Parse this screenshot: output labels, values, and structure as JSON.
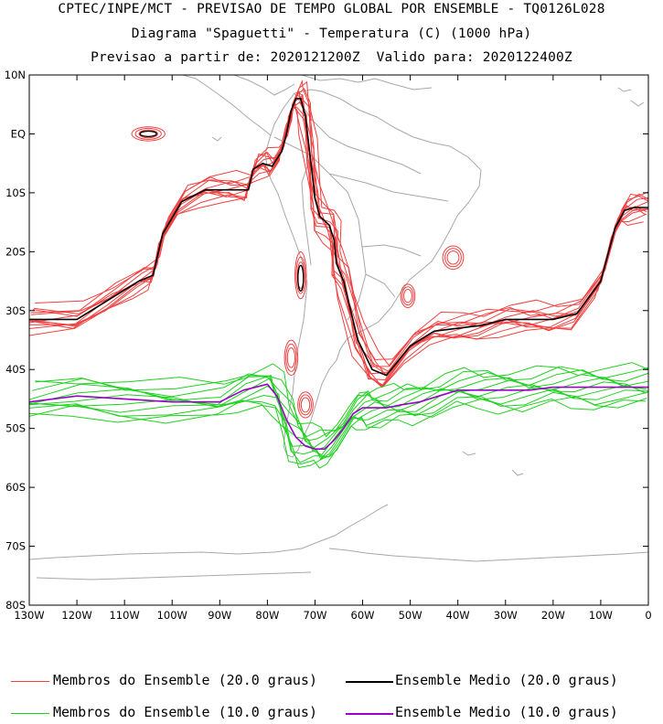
{
  "title": {
    "line1": "CPTEC/INPE/MCT - PREVISAO DE TEMPO GLOBAL POR ENSEMBLE - TQ0126L028",
    "line2": "Diagrama \"Spaguetti\" - Temperatura (C) (1000 hPa)",
    "line3": "Previsao a partir de: 2020121200Z  Valido para: 2020122400Z"
  },
  "axes": {
    "y_ticks": [
      "10N",
      "EQ",
      "10S",
      "20S",
      "30S",
      "40S",
      "50S",
      "60S",
      "70S",
      "80S"
    ],
    "x_ticks": [
      "130W",
      "120W",
      "110W",
      "100W",
      "90W",
      "80W",
      "70W",
      "60W",
      "50W",
      "40W",
      "30W",
      "20W",
      "10W",
      "0"
    ]
  },
  "legend": {
    "members_20": "Membros do Ensemble (20.0 graus)",
    "mean_20": "Ensemble Medio (20.0 graus)",
    "members_10": "Membros do Ensemble (10.0 graus)",
    "mean_10": "Ensemble Medio (10.0 graus)"
  },
  "colors": {
    "members_20": "#f04040",
    "mean_20": "#000000",
    "members_10": "#20d020",
    "mean_10": "#9a00c8",
    "coast": "#a8a8a8"
  },
  "chart_data": {
    "type": "line",
    "title": "Diagrama \"Spaguetti\" - Temperatura (C) (1000 hPa)",
    "xlim": [
      -130,
      0
    ],
    "ylim": [
      -80,
      10
    ],
    "series": [
      {
        "name": "Ensemble Medio (20.0 graus)",
        "lon": [
          -130,
          -120,
          -113,
          -107,
          -104,
          -102,
          -98,
          -93,
          -88,
          -84,
          -83,
          -81,
          -79,
          -77,
          -76,
          -75,
          -74,
          -73,
          -72,
          -71,
          -70,
          -69,
          -67,
          -66,
          -65.5,
          -64,
          -61,
          -58,
          -55,
          -50,
          -45,
          -40,
          -35,
          -30,
          -25,
          -20,
          -15,
          -10,
          -7,
          -5,
          -3,
          0
        ],
        "lat": [
          -31.5,
          -31.5,
          -28,
          -25,
          -24,
          -17,
          -11.5,
          -9.5,
          -9.5,
          -9.5,
          -6,
          -5,
          -5.5,
          -3,
          0,
          4,
          6,
          6,
          3,
          -4,
          -11,
          -14,
          -15.5,
          -18,
          -22,
          -25,
          -35,
          -40,
          -41,
          -36,
          -33.5,
          -33,
          -32.5,
          -31.5,
          -31.5,
          -31.5,
          -30.5,
          -25,
          -16,
          -13,
          -12.5,
          -12.5
        ]
      },
      {
        "name": "Ensemble Medio (10.0 graus)",
        "lon": [
          -130,
          -120,
          -110,
          -100,
          -90,
          -85,
          -80,
          -78,
          -76,
          -74,
          -72,
          -70,
          -68,
          -66,
          -64,
          -62,
          -60,
          -58,
          -55,
          -52,
          -48,
          -44,
          -40,
          -35,
          -30,
          -25,
          -20,
          -15,
          -10,
          -5,
          0
        ],
        "lat": [
          -45.5,
          -44.5,
          -45,
          -45.5,
          -45.5,
          -43.5,
          -42.5,
          -44.5,
          -48.5,
          -51.5,
          -53,
          -53.5,
          -53.5,
          -52,
          -50,
          -47.5,
          -46.5,
          -46.5,
          -46.5,
          -46,
          -45.5,
          -44.5,
          -43.5,
          -43.5,
          -43.5,
          -43.5,
          -43,
          -43,
          -43,
          -43,
          -43
        ]
      }
    ]
  }
}
